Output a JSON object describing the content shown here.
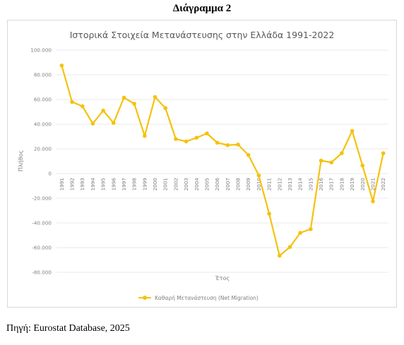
{
  "heading": "Διάγραμμα 2",
  "source": "Πηγή: Eurostat Database, 2025",
  "colors": {
    "series": "#f4c20d",
    "grid": "#e3e3e3",
    "text": "#7f7f7f"
  },
  "chart_data": {
    "type": "line",
    "title": "Ιστορικά Στοιχεία Μετανάστευσης στην Ελλάδα 1991-2022",
    "xlabel": "Έτος",
    "ylabel": "Πλήθος",
    "ylim": [
      -80000,
      100000
    ],
    "ytick_labels": [
      "100.000",
      "80.000",
      "60.000",
      "40.000",
      "20.000",
      "0",
      "-20.000",
      "-40.000",
      "-60.000",
      "-80.000"
    ],
    "ytick_values": [
      100000,
      80000,
      60000,
      40000,
      20000,
      0,
      -20000,
      -40000,
      -60000,
      -80000
    ],
    "grid": true,
    "legend_position": "bottom",
    "categories": [
      "1991",
      "1992",
      "1993",
      "1994",
      "1995",
      "1996",
      "1997",
      "1998",
      "1999",
      "2000",
      "2001",
      "2002",
      "2003",
      "2004",
      "2005",
      "2006",
      "2007",
      "2008",
      "2009",
      "2010",
      "2011",
      "2012",
      "2013",
      "2014",
      "2015",
      "2016",
      "2017",
      "2018",
      "2019",
      "2020",
      "2021",
      "2022"
    ],
    "series": [
      {
        "name": "Καθαρή Μετανάστευση (Net Migration)",
        "values": [
          87500,
          58000,
          54500,
          40500,
          51000,
          41000,
          61500,
          56500,
          30500,
          62000,
          53000,
          28000,
          26000,
          29000,
          32500,
          25000,
          23000,
          23500,
          15000,
          -1500,
          -32500,
          -66500,
          -59500,
          -48000,
          -45000,
          10500,
          9000,
          16500,
          34500,
          6500,
          -22500,
          16500
        ]
      }
    ]
  }
}
